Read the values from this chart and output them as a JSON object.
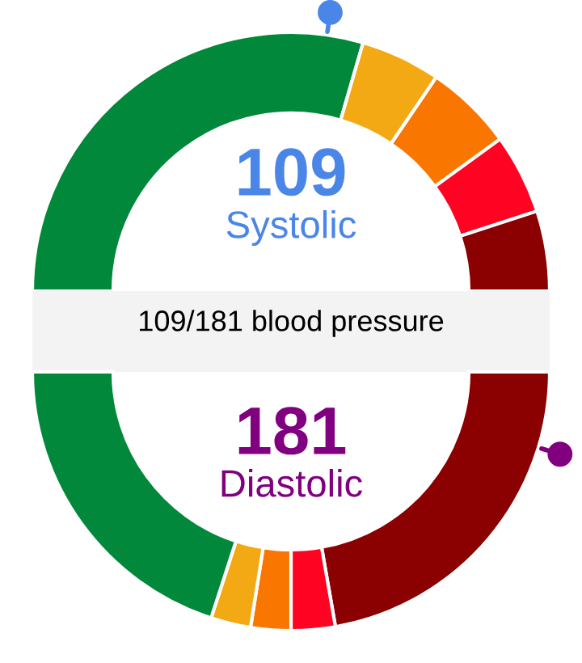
{
  "chart_data": [
    {
      "type": "donut",
      "title": "109/181 blood pressure",
      "annotations": [
        "109",
        "Systolic"
      ],
      "categories": [
        null,
        null,
        null,
        null,
        null
      ],
      "values": [
        59,
        10,
        11,
        10,
        10
      ],
      "colors": [
        "#02883a",
        "#f3a913",
        "#f97600",
        "#fe0322",
        "#8b0000"
      ]
    },
    {
      "type": "donut",
      "annotations": [
        "181",
        "Diastolic"
      ],
      "categories": [
        null,
        null,
        null,
        null,
        null
      ],
      "values": [
        44.5,
        5.5,
        5,
        5,
        40
      ],
      "colors": [
        "#8b0000",
        "#fe0322",
        "#f97600",
        "#f3a913",
        "#02883a"
      ]
    }
  ]
}
